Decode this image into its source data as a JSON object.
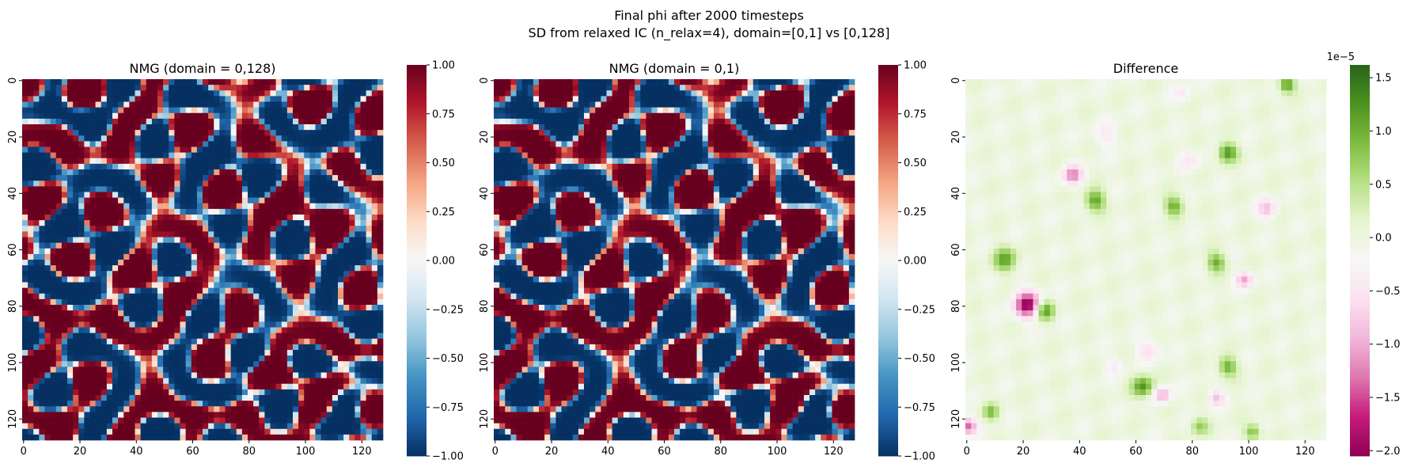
{
  "figure": {
    "title_line1": "Final phi after 2000 timesteps",
    "title_line2": "SD from relaxed IC (n_relax=4), domain=[0,1] vs [0,128]"
  },
  "chart_data": [
    {
      "type": "heatmap",
      "title": "NMG (domain = 0,128)",
      "colormap": "RdBu_r",
      "grid_size": 128,
      "x_ticks": [
        "0",
        "20",
        "40",
        "60",
        "80",
        "100",
        "120"
      ],
      "y_ticks": [
        "0",
        "20",
        "40",
        "60",
        "80",
        "100",
        "120"
      ],
      "colorbar": {
        "min": -1.0,
        "max": 1.0,
        "ticks": [
          "1.00",
          "0.75",
          "0.50",
          "0.25",
          "0.00",
          "−0.25",
          "−0.50",
          "−0.75",
          "−1.00"
        ]
      },
      "xlabel": "",
      "ylabel": ""
    },
    {
      "type": "heatmap",
      "title": "NMG (domain = 0,1)",
      "colormap": "RdBu_r",
      "grid_size": 128,
      "x_ticks": [
        "0",
        "20",
        "40",
        "60",
        "80",
        "100",
        "120"
      ],
      "y_ticks": [
        "0",
        "20",
        "40",
        "60",
        "80",
        "100",
        "120"
      ],
      "colorbar": {
        "min": -1.0,
        "max": 1.0,
        "ticks": [
          "1.00",
          "0.75",
          "0.50",
          "0.25",
          "0.00",
          "−0.25",
          "−0.50",
          "−0.75",
          "−1.00"
        ]
      },
      "xlabel": "",
      "ylabel": ""
    },
    {
      "type": "heatmap",
      "title": "Difference",
      "colormap": "PiYG",
      "grid_size": 128,
      "x_ticks": [
        "0",
        "20",
        "40",
        "60",
        "80",
        "100",
        "120"
      ],
      "y_ticks": [
        "0",
        "20",
        "40",
        "60",
        "80",
        "100",
        "120"
      ],
      "colorbar": {
        "min": -2.05,
        "max": 1.62,
        "scale_label": "1e−5",
        "ticks": [
          "1.5",
          "1.0",
          "0.5",
          "0.0",
          "−0.5",
          "−1.0",
          "−1.5",
          "−2.0"
        ],
        "tick_values": [
          1.5,
          1.0,
          0.5,
          0.0,
          -0.5,
          -1.0,
          -1.5,
          -2.0
        ]
      },
      "xlabel": "",
      "ylabel": ""
    }
  ],
  "colors": {
    "rdbu": [
      "#053061",
      "#2166ac",
      "#4393c3",
      "#92c5de",
      "#d1e5f0",
      "#f7f7f7",
      "#fddbc7",
      "#f4a582",
      "#d6604d",
      "#b2182b",
      "#67001f"
    ],
    "piyg": [
      "#8e0152",
      "#c51b7d",
      "#de77ae",
      "#f1b6da",
      "#fde0ef",
      "#f7f7f7",
      "#e6f5d0",
      "#b8e186",
      "#7fbc41",
      "#4d9221",
      "#276419"
    ]
  }
}
